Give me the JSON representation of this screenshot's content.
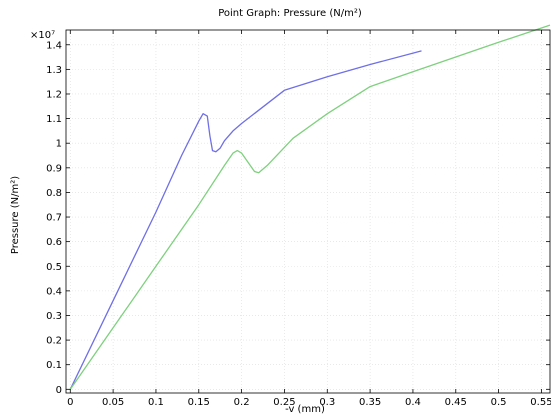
{
  "chart_data": {
    "type": "line",
    "title": "Point Graph: Pressure (N/m²)",
    "xlabel": "-v (mm)",
    "ylabel": "Pressure (N/m²)",
    "y_multiplier": "×10⁷",
    "xlim": [
      -0.005,
      0.56
    ],
    "ylim": [
      -0.015,
      1.46
    ],
    "x_ticks": [
      "0",
      "0.05",
      "0.1",
      "0.15",
      "0.2",
      "0.25",
      "0.3",
      "0.35",
      "0.4",
      "0.45",
      "0.5",
      "0.55"
    ],
    "y_ticks": [
      "0",
      "0.1",
      "0.2",
      "0.3",
      "0.4",
      "0.5",
      "0.6",
      "0.7",
      "0.8",
      "0.9",
      "1",
      "1.1",
      "1.2",
      "1.3",
      "1.4"
    ],
    "grid": true,
    "series": [
      {
        "color": "#6f6fe6",
        "x": [
          0,
          0.05,
          0.1,
          0.13,
          0.15,
          0.155,
          0.16,
          0.163,
          0.166,
          0.17,
          0.175,
          0.18,
          0.19,
          0.2,
          0.25,
          0.3,
          0.35,
          0.41
        ],
        "y": [
          0,
          0.36,
          0.72,
          0.95,
          1.09,
          1.12,
          1.11,
          1.03,
          0.97,
          0.965,
          0.98,
          1.01,
          1.05,
          1.08,
          1.215,
          1.27,
          1.32,
          1.375
        ]
      },
      {
        "color": "#7ed07e",
        "x": [
          0,
          0.05,
          0.1,
          0.15,
          0.18,
          0.19,
          0.195,
          0.2,
          0.205,
          0.21,
          0.215,
          0.22,
          0.23,
          0.26,
          0.3,
          0.35,
          0.4,
          0.5,
          0.56
        ],
        "y": [
          0,
          0.25,
          0.5,
          0.75,
          0.91,
          0.96,
          0.97,
          0.96,
          0.935,
          0.91,
          0.885,
          0.88,
          0.91,
          1.02,
          1.12,
          1.23,
          1.29,
          1.41,
          1.48
        ]
      }
    ]
  }
}
